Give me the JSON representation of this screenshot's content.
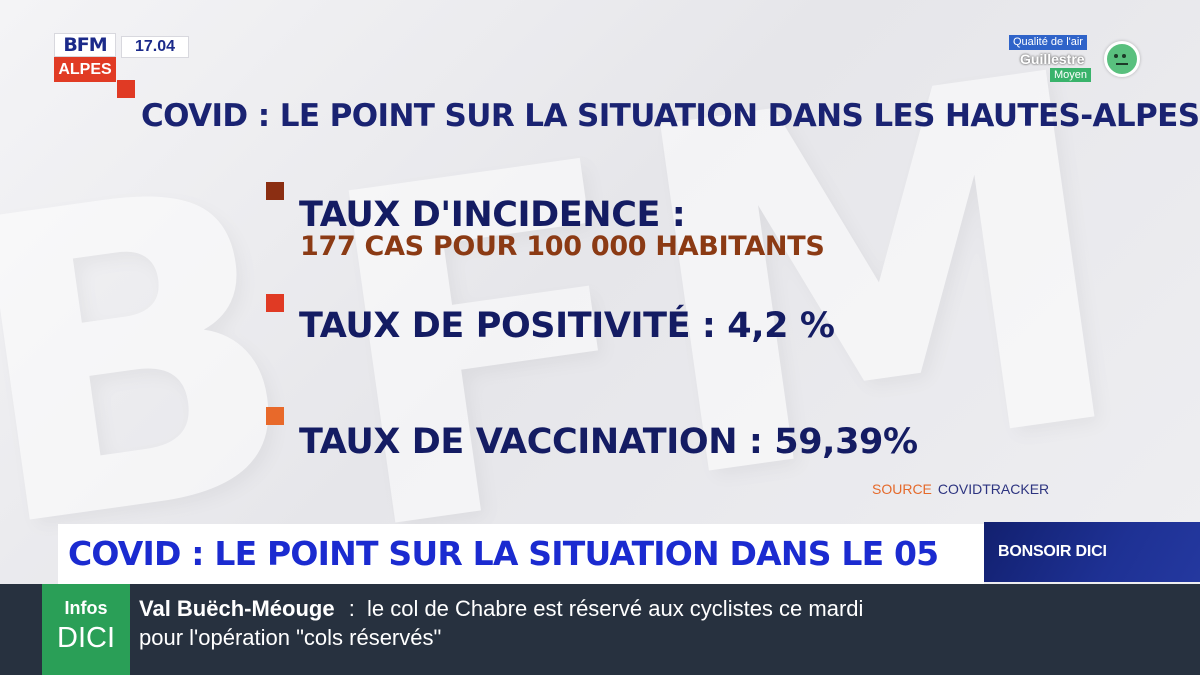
{
  "channel": {
    "logo_top": "BFM",
    "logo_bottom": "ALPES",
    "time": "17.04"
  },
  "air_quality": {
    "title": "Qualité de l'air",
    "place": "Guillestre",
    "level": "Moyen",
    "icon": "neutral-face-icon",
    "color": "#59c07e"
  },
  "graphic": {
    "heading": "COVID : LE POINT SUR LA SITUATION DANS LES HAUTES-ALPES",
    "stats": [
      {
        "label": "TAUX D'INCIDENCE :",
        "sub": "177 CAS POUR 100 000 HABITANTS",
        "bullet_color": "#8b2e12"
      },
      {
        "label": "TAUX DE POSITIVITÉ : 4,2 %",
        "bullet_color": "#e03a24"
      },
      {
        "label": "TAUX DE VACCINATION : 59,39%",
        "bullet_color": "#e8692a"
      }
    ],
    "heading_bullet_color": "#e03a24",
    "source_label": "SOURCE",
    "source_value": "COVIDTRACKER"
  },
  "lower_third": {
    "headline": "COVID : LE POINT SUR LA SITUATION DANS LE 05",
    "show": "BONSOIR DICI"
  },
  "ticker": {
    "badge_top": "Infos",
    "badge_bottom": "DICI",
    "location": "Val Buëch-Méouge",
    "separator": ":",
    "line1_text": "le col de Chabre est réservé aux cyclistes ce mardi",
    "line2_text": "pour l'opération \"cols réservés\""
  }
}
